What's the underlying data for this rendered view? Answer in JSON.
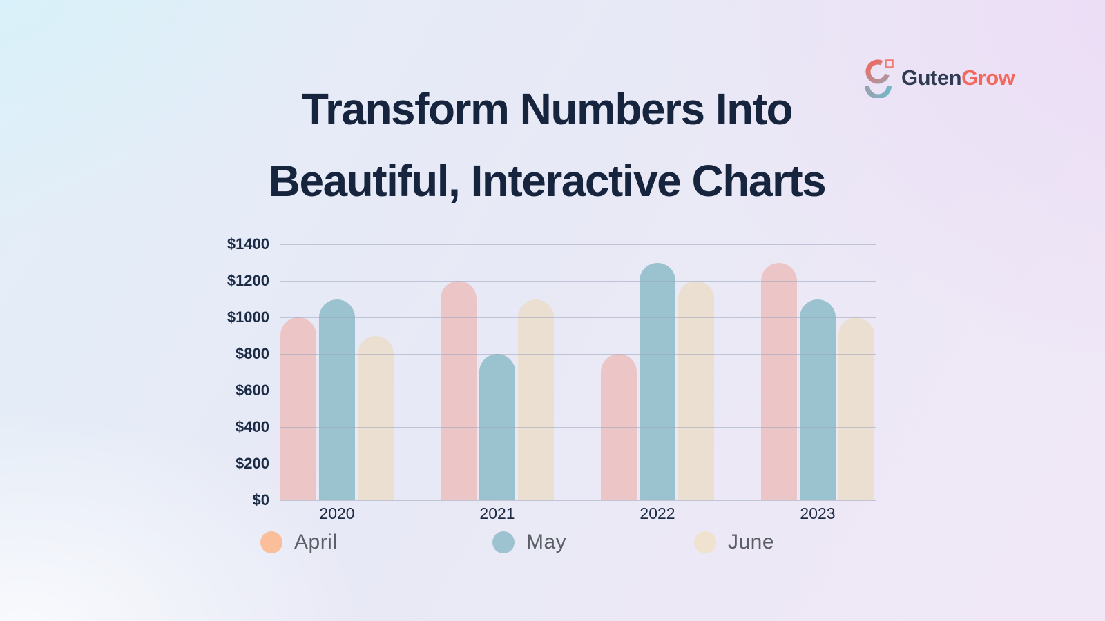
{
  "page": {
    "title_line1": "Transform Numbers Into",
    "title_line2": "Beautiful, Interactive Charts"
  },
  "logo": {
    "name_primary": "Guten",
    "name_secondary": "Grow"
  },
  "colors": {
    "title_text": "#16243D",
    "axis_text": "#1C2B45",
    "legend_text": "#5A5F66",
    "gridline": "#9AA4BC",
    "logo_primary": "#2E3B52",
    "logo_accent": "#F2685C",
    "logo_icon_coral": "#EE6A5E",
    "logo_icon_gray": "#A89AA6",
    "logo_icon_steel": "#97A2B1",
    "logo_icon_teal": "#73B7C6"
  },
  "chart_data": {
    "type": "bar",
    "title": "",
    "categories": [
      "2020",
      "2021",
      "2022",
      "2023"
    ],
    "series": [
      {
        "name": "April",
        "color": "#ECC6C7",
        "legend_color": "#FBBE9A",
        "values": [
          1000,
          1200,
          800,
          1300
        ]
      },
      {
        "name": "May",
        "color": "#9BC2CF",
        "legend_color": "#9CC3CF",
        "values": [
          1100,
          800,
          1300,
          1100
        ]
      },
      {
        "name": "June",
        "color": "#EADFD1",
        "legend_color": "#EFE3CF",
        "values": [
          900,
          1100,
          1200,
          1000
        ]
      }
    ],
    "y_axis": {
      "min": 0,
      "max": 1400,
      "step": 200,
      "tick_prefix": "$",
      "tick_labels": [
        "$0",
        "$200",
        "$400",
        "$600",
        "$800",
        "$1000",
        "$1200",
        "$1400"
      ]
    },
    "xlabel": "",
    "ylabel": "",
    "grid": true,
    "legend_position": "bottom"
  }
}
